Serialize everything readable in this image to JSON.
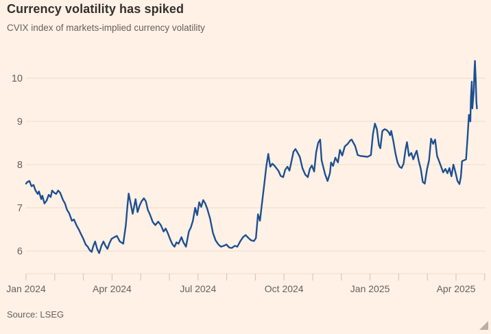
{
  "header": {
    "title": "Currency volatility has spiked",
    "subtitle": "CVIX index of markets-implied currency volatility"
  },
  "footer": {
    "source": "Source: LSEG"
  },
  "colors": {
    "background": "#FFF1E5",
    "title_text": "#33302E",
    "muted_text": "#66605B",
    "grid_line": "#EBDACA",
    "tick_mark": "#CFC1B1",
    "series_line": "#1D4F91",
    "resize_handle": "#B9AFA3"
  },
  "chart_data": {
    "type": "line",
    "title": "Currency volatility has spiked",
    "subtitle": "CVIX index of markets-implied currency volatility",
    "source": "Source: LSEG",
    "series_name": "CVIX index",
    "legend": "none",
    "grid": "horizontal",
    "xlabel": "",
    "ylabel": "",
    "x_unit": "months since Jan 2024 (0 = Jan 2024, 15 = Apr 2025)",
    "xlim": [
      0,
      16
    ],
    "ylim": [
      5.5,
      10.5
    ],
    "y_ticks": [
      6,
      7,
      8,
      9,
      10
    ],
    "x_tick_labels": [
      {
        "m": 0,
        "label": "Jan 2024"
      },
      {
        "m": 3,
        "label": "Apr 2024"
      },
      {
        "m": 6,
        "label": "Jul 2024"
      },
      {
        "m": 9,
        "label": "Oct 2024"
      },
      {
        "m": 12,
        "label": "Jan 2025"
      },
      {
        "m": 15,
        "label": "Apr 2025"
      }
    ],
    "minor_tick_every_month": true,
    "line_color": "#1D4F91",
    "points": [
      [
        0.0,
        7.56
      ],
      [
        0.05,
        7.6
      ],
      [
        0.12,
        7.62
      ],
      [
        0.19,
        7.5
      ],
      [
        0.26,
        7.53
      ],
      [
        0.33,
        7.4
      ],
      [
        0.41,
        7.32
      ],
      [
        0.45,
        7.38
      ],
      [
        0.53,
        7.2
      ],
      [
        0.57,
        7.28
      ],
      [
        0.64,
        7.1
      ],
      [
        0.72,
        7.17
      ],
      [
        0.79,
        7.3
      ],
      [
        0.86,
        7.25
      ],
      [
        0.91,
        7.4
      ],
      [
        0.98,
        7.35
      ],
      [
        1.05,
        7.32
      ],
      [
        1.12,
        7.4
      ],
      [
        1.19,
        7.35
      ],
      [
        1.29,
        7.18
      ],
      [
        1.36,
        7.1
      ],
      [
        1.43,
        6.95
      ],
      [
        1.5,
        6.88
      ],
      [
        1.6,
        6.7
      ],
      [
        1.67,
        6.73
      ],
      [
        1.77,
        6.58
      ],
      [
        1.84,
        6.5
      ],
      [
        1.91,
        6.4
      ],
      [
        2.0,
        6.28
      ],
      [
        2.08,
        6.15
      ],
      [
        2.15,
        6.1
      ],
      [
        2.22,
        6.02
      ],
      [
        2.29,
        5.98
      ],
      [
        2.34,
        6.1
      ],
      [
        2.41,
        6.22
      ],
      [
        2.48,
        6.05
      ],
      [
        2.55,
        5.95
      ],
      [
        2.63,
        6.12
      ],
      [
        2.7,
        6.22
      ],
      [
        2.77,
        6.12
      ],
      [
        2.84,
        6.05
      ],
      [
        2.91,
        6.18
      ],
      [
        2.98,
        6.28
      ],
      [
        3.08,
        6.32
      ],
      [
        3.17,
        6.35
      ],
      [
        3.27,
        6.22
      ],
      [
        3.39,
        6.17
      ],
      [
        3.48,
        6.6
      ],
      [
        3.53,
        7.0
      ],
      [
        3.58,
        7.33
      ],
      [
        3.65,
        7.1
      ],
      [
        3.72,
        6.86
      ],
      [
        3.82,
        7.2
      ],
      [
        3.89,
        6.9
      ],
      [
        3.96,
        7.05
      ],
      [
        4.03,
        7.15
      ],
      [
        4.11,
        7.22
      ],
      [
        4.18,
        7.15
      ],
      [
        4.25,
        6.95
      ],
      [
        4.32,
        6.85
      ],
      [
        4.42,
        6.67
      ],
      [
        4.51,
        6.6
      ],
      [
        4.61,
        6.68
      ],
      [
        4.7,
        6.6
      ],
      [
        4.8,
        6.45
      ],
      [
        4.87,
        6.52
      ],
      [
        4.94,
        6.42
      ],
      [
        5.04,
        6.25
      ],
      [
        5.11,
        6.15
      ],
      [
        5.18,
        6.1
      ],
      [
        5.25,
        6.2
      ],
      [
        5.32,
        6.17
      ],
      [
        5.42,
        6.32
      ],
      [
        5.49,
        6.2
      ],
      [
        5.58,
        6.1
      ],
      [
        5.68,
        6.45
      ],
      [
        5.75,
        6.55
      ],
      [
        5.82,
        6.7
      ],
      [
        5.9,
        7.0
      ],
      [
        5.97,
        6.83
      ],
      [
        6.04,
        7.13
      ],
      [
        6.11,
        7.02
      ],
      [
        6.18,
        7.18
      ],
      [
        6.25,
        7.1
      ],
      [
        6.32,
        6.98
      ],
      [
        6.42,
        6.75
      ],
      [
        6.52,
        6.42
      ],
      [
        6.61,
        6.25
      ],
      [
        6.71,
        6.15
      ],
      [
        6.8,
        6.1
      ],
      [
        6.9,
        6.12
      ],
      [
        6.99,
        6.15
      ],
      [
        7.09,
        6.08
      ],
      [
        7.18,
        6.07
      ],
      [
        7.28,
        6.12
      ],
      [
        7.37,
        6.1
      ],
      [
        7.47,
        6.22
      ],
      [
        7.57,
        6.32
      ],
      [
        7.66,
        6.37
      ],
      [
        7.76,
        6.3
      ],
      [
        7.85,
        6.25
      ],
      [
        7.95,
        6.23
      ],
      [
        8.02,
        6.3
      ],
      [
        8.09,
        6.85
      ],
      [
        8.16,
        6.7
      ],
      [
        8.23,
        7.1
      ],
      [
        8.31,
        7.55
      ],
      [
        8.38,
        7.95
      ],
      [
        8.45,
        8.25
      ],
      [
        8.52,
        7.95
      ],
      [
        8.59,
        8.02
      ],
      [
        8.66,
        7.98
      ],
      [
        8.73,
        7.92
      ],
      [
        8.81,
        7.85
      ],
      [
        8.88,
        7.74
      ],
      [
        8.97,
        7.71
      ],
      [
        9.04,
        7.88
      ],
      [
        9.12,
        7.95
      ],
      [
        9.19,
        7.86
      ],
      [
        9.26,
        8.08
      ],
      [
        9.33,
        8.3
      ],
      [
        9.4,
        8.36
      ],
      [
        9.47,
        8.28
      ],
      [
        9.55,
        8.18
      ],
      [
        9.64,
        7.92
      ],
      [
        9.74,
        7.77
      ],
      [
        9.83,
        7.71
      ],
      [
        9.9,
        7.9
      ],
      [
        9.97,
        7.98
      ],
      [
        10.05,
        7.84
      ],
      [
        10.12,
        8.28
      ],
      [
        10.19,
        8.5
      ],
      [
        10.26,
        8.58
      ],
      [
        10.31,
        8.1
      ],
      [
        10.36,
        7.97
      ],
      [
        10.43,
        7.78
      ],
      [
        10.52,
        7.62
      ],
      [
        10.6,
        7.8
      ],
      [
        10.64,
        8.05
      ],
      [
        10.71,
        7.97
      ],
      [
        10.79,
        8.16
      ],
      [
        10.88,
        8.05
      ],
      [
        10.95,
        8.34
      ],
      [
        11.03,
        8.21
      ],
      [
        11.12,
        8.42
      ],
      [
        11.22,
        8.48
      ],
      [
        11.31,
        8.56
      ],
      [
        11.36,
        8.58
      ],
      [
        11.48,
        8.43
      ],
      [
        11.57,
        8.22
      ],
      [
        11.67,
        8.2
      ],
      [
        11.79,
        8.19
      ],
      [
        11.91,
        8.18
      ],
      [
        12.03,
        8.22
      ],
      [
        12.1,
        8.7
      ],
      [
        12.17,
        8.95
      ],
      [
        12.24,
        8.82
      ],
      [
        12.31,
        8.45
      ],
      [
        12.36,
        8.38
      ],
      [
        12.43,
        8.78
      ],
      [
        12.51,
        8.82
      ],
      [
        12.58,
        8.8
      ],
      [
        12.65,
        8.75
      ],
      [
        12.7,
        8.68
      ],
      [
        12.74,
        8.78
      ],
      [
        12.81,
        8.55
      ],
      [
        12.89,
        8.25
      ],
      [
        12.96,
        8.05
      ],
      [
        13.03,
        7.95
      ],
      [
        13.1,
        7.92
      ],
      [
        13.17,
        8.02
      ],
      [
        13.24,
        8.35
      ],
      [
        13.29,
        8.52
      ],
      [
        13.36,
        8.2
      ],
      [
        13.44,
        8.27
      ],
      [
        13.51,
        8.12
      ],
      [
        13.58,
        8.25
      ],
      [
        13.63,
        8.32
      ],
      [
        13.7,
        8.08
      ],
      [
        13.77,
        7.9
      ],
      [
        13.84,
        7.6
      ],
      [
        13.91,
        7.56
      ],
      [
        13.99,
        7.9
      ],
      [
        14.06,
        8.1
      ],
      [
        14.13,
        8.6
      ],
      [
        14.2,
        8.48
      ],
      [
        14.27,
        8.58
      ],
      [
        14.34,
        8.2
      ],
      [
        14.41,
        8.08
      ],
      [
        14.48,
        7.95
      ],
      [
        14.55,
        7.82
      ],
      [
        14.63,
        7.9
      ],
      [
        14.7,
        7.8
      ],
      [
        14.77,
        7.92
      ],
      [
        14.84,
        7.73
      ],
      [
        14.91,
        8.0
      ],
      [
        14.98,
        7.82
      ],
      [
        15.05,
        7.62
      ],
      [
        15.12,
        7.55
      ],
      [
        15.17,
        7.72
      ],
      [
        15.21,
        8.08
      ],
      [
        15.28,
        8.1
      ],
      [
        15.35,
        8.12
      ],
      [
        15.4,
        8.6
      ],
      [
        15.45,
        9.15
      ],
      [
        15.5,
        9.0
      ],
      [
        15.52,
        9.55
      ],
      [
        15.55,
        9.92
      ],
      [
        15.57,
        9.3
      ],
      [
        15.62,
        9.7
      ],
      [
        15.64,
        10.15
      ],
      [
        15.66,
        10.4
      ],
      [
        15.69,
        9.95
      ],
      [
        15.71,
        9.45
      ],
      [
        15.73,
        9.3
      ]
    ]
  }
}
